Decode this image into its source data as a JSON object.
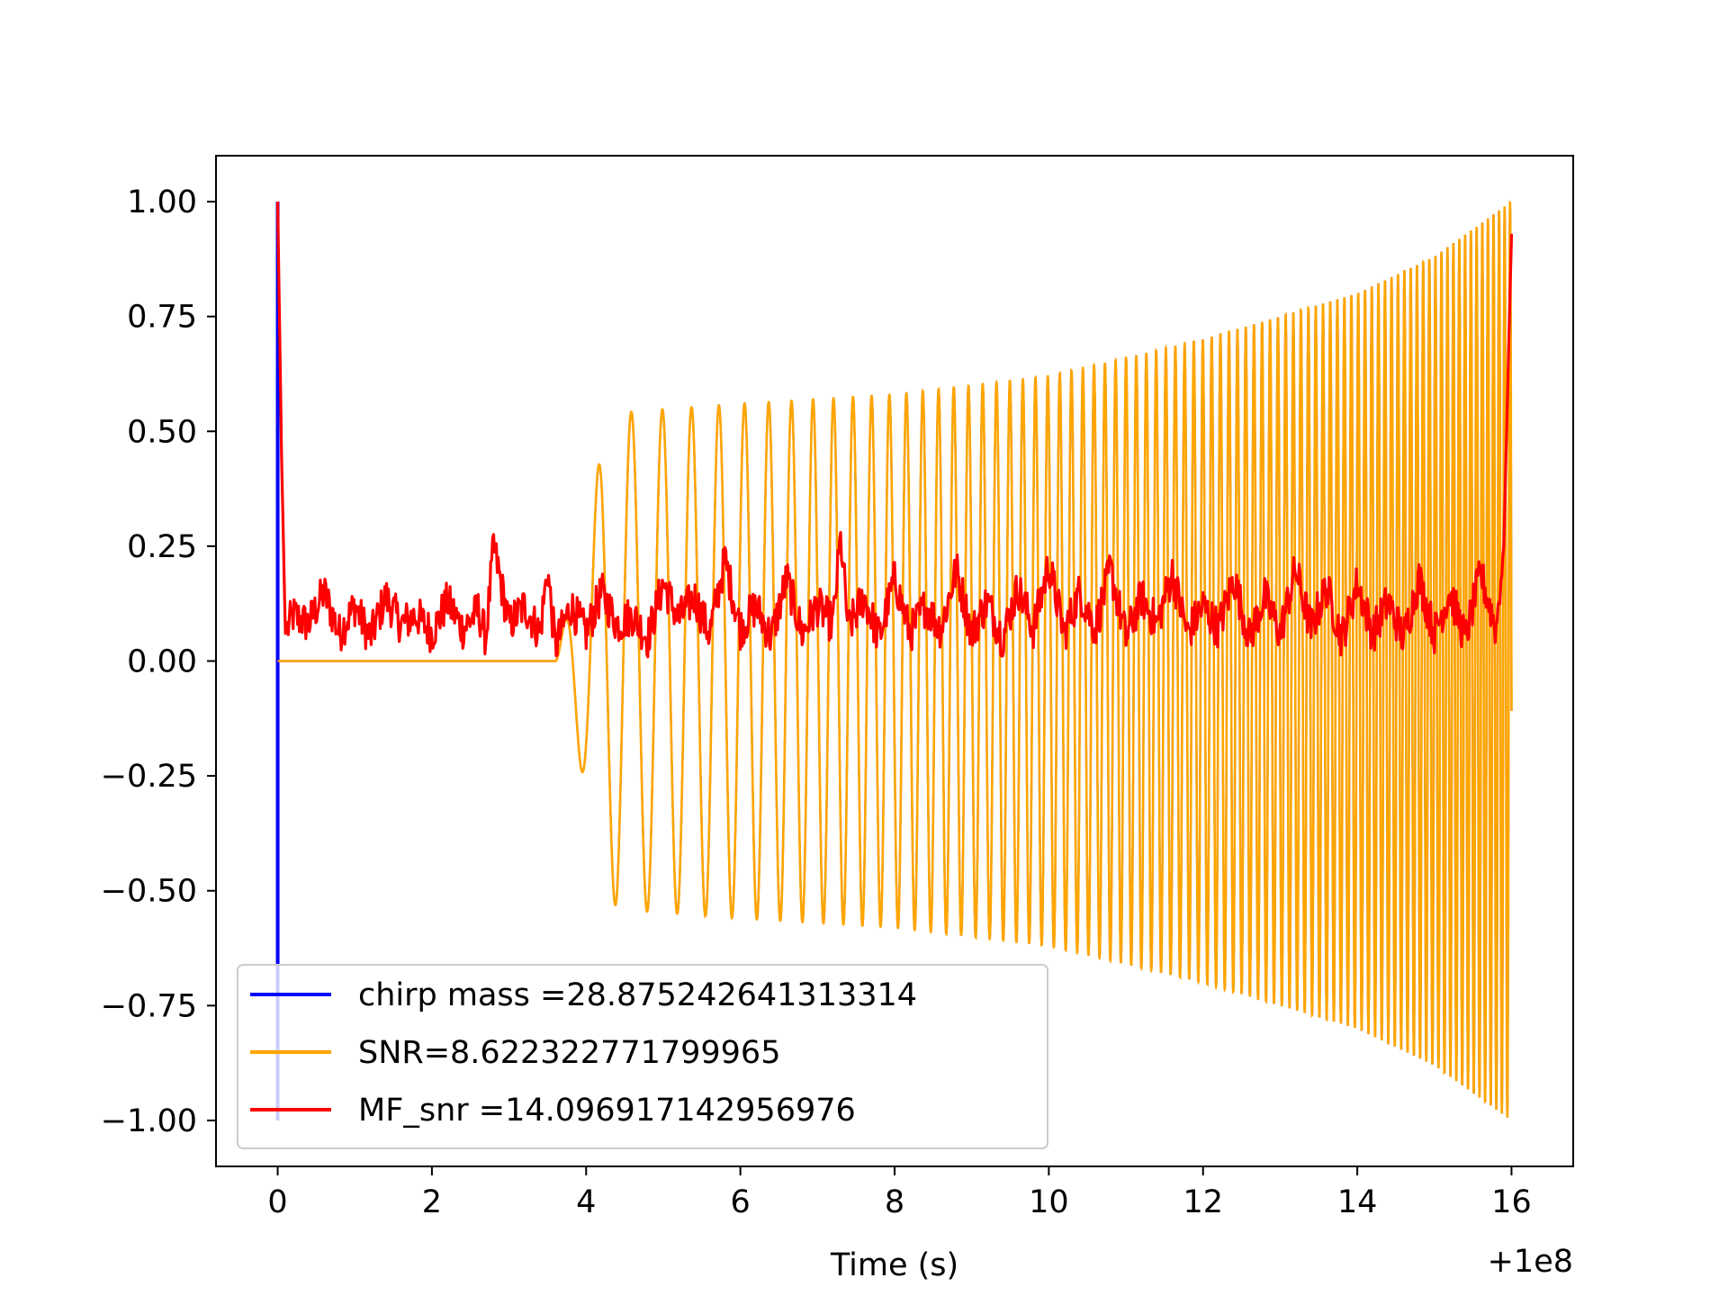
{
  "chart_data": {
    "type": "line",
    "title": "",
    "xlabel": "Time (s)",
    "ylabel": "",
    "x_offset_label": "+1e8",
    "xlim": [
      -0.8,
      16.8
    ],
    "ylim": [
      -1.1,
      1.1
    ],
    "x_ticks": [
      0,
      2,
      4,
      6,
      8,
      10,
      12,
      14,
      16
    ],
    "x_tick_labels": [
      "0",
      "2",
      "4",
      "6",
      "8",
      "10",
      "12",
      "14",
      "16"
    ],
    "y_ticks": [
      1.0,
      0.75,
      0.5,
      0.25,
      0.0,
      -0.25,
      -0.5,
      -0.75,
      -1.0
    ],
    "y_tick_labels": [
      "1.00",
      "0.75",
      "0.50",
      "0.25",
      "0.00",
      "−0.25",
      "−0.50",
      "−0.75",
      "−1.00"
    ],
    "grid": false,
    "legend_position": "lower-left",
    "series": [
      {
        "name": "chirp mass =28.875242641313314",
        "color": "#0000ff",
        "shape": "chirp-waveform",
        "spike_x": 0,
        "spike_y": [
          -1.0,
          1.0
        ],
        "onset_x": 3.6,
        "x_end": 16.0,
        "envelope": [
          [
            3.6,
            0.0
          ],
          [
            4.0,
            0.28
          ],
          [
            4.2,
            0.46
          ],
          [
            4.4,
            0.54
          ],
          [
            6.0,
            0.56
          ],
          [
            8.0,
            0.58
          ],
          [
            10.0,
            0.62
          ],
          [
            12.0,
            0.7
          ],
          [
            14.0,
            0.8
          ],
          [
            15.0,
            0.88
          ],
          [
            16.0,
            1.0
          ]
        ]
      },
      {
        "name": "SNR=8.622322771799965",
        "color": "#ffa500",
        "shape": "chirp-waveform",
        "onset_x": 3.6,
        "x_end": 16.0,
        "envelope": [
          [
            3.6,
            0.0
          ],
          [
            4.0,
            0.28
          ],
          [
            4.2,
            0.46
          ],
          [
            4.4,
            0.54
          ],
          [
            6.0,
            0.56
          ],
          [
            8.0,
            0.58
          ],
          [
            10.0,
            0.62
          ],
          [
            12.0,
            0.7
          ],
          [
            14.0,
            0.8
          ],
          [
            15.0,
            0.88
          ],
          [
            16.0,
            1.0
          ]
        ]
      },
      {
        "name": "MF_snr =14.096917142956976",
        "color": "#ff0000",
        "shape": "noisy-trace",
        "start_peak": [
          0.0,
          1.0
        ],
        "end_peak": [
          16.0,
          0.93
        ],
        "baseline_range": [
          0.0,
          0.27
        ],
        "x": [
          0.0,
          0.05,
          0.1,
          0.2,
          0.4,
          0.6,
          0.8,
          1.0,
          1.2,
          1.4,
          1.6,
          1.8,
          2.0,
          2.2,
          2.4,
          2.6,
          2.7,
          2.8,
          3.0,
          3.2,
          3.4,
          3.5,
          3.6,
          3.8,
          4.0,
          4.2,
          4.4,
          4.6,
          4.8,
          5.0,
          5.2,
          5.4,
          5.6,
          5.8,
          6.0,
          6.2,
          6.4,
          6.6,
          6.8,
          7.0,
          7.2,
          7.3,
          7.4,
          7.6,
          7.8,
          8.0,
          8.2,
          8.4,
          8.6,
          8.8,
          9.0,
          9.2,
          9.4,
          9.6,
          9.8,
          10.0,
          10.2,
          10.4,
          10.6,
          10.8,
          11.0,
          11.2,
          11.4,
          11.6,
          11.8,
          12.0,
          12.2,
          12.4,
          12.6,
          12.8,
          13.0,
          13.2,
          13.4,
          13.6,
          13.8,
          14.0,
          14.2,
          14.4,
          14.6,
          14.8,
          15.0,
          15.2,
          15.4,
          15.6,
          15.8,
          15.9,
          16.0
        ],
        "y": [
          1.0,
          0.45,
          0.06,
          0.1,
          0.08,
          0.15,
          0.06,
          0.12,
          0.05,
          0.14,
          0.08,
          0.1,
          0.06,
          0.13,
          0.07,
          0.11,
          0.05,
          0.25,
          0.08,
          0.12,
          0.06,
          0.2,
          0.03,
          0.12,
          0.06,
          0.15,
          0.08,
          0.1,
          0.05,
          0.17,
          0.09,
          0.14,
          0.06,
          0.22,
          0.07,
          0.12,
          0.05,
          0.18,
          0.06,
          0.12,
          0.08,
          0.27,
          0.07,
          0.14,
          0.05,
          0.18,
          0.06,
          0.12,
          0.07,
          0.2,
          0.06,
          0.13,
          0.05,
          0.16,
          0.07,
          0.21,
          0.06,
          0.15,
          0.07,
          0.2,
          0.05,
          0.14,
          0.08,
          0.19,
          0.06,
          0.12,
          0.07,
          0.18,
          0.05,
          0.14,
          0.06,
          0.2,
          0.07,
          0.16,
          0.05,
          0.17,
          0.06,
          0.13,
          0.05,
          0.18,
          0.06,
          0.15,
          0.05,
          0.19,
          0.07,
          0.25,
          0.93
        ]
      }
    ]
  }
}
